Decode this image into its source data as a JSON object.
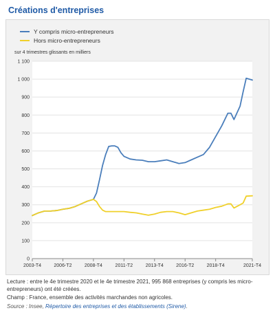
{
  "title": "Créations d'entreprises",
  "chart_data": {
    "type": "line",
    "ylabel": "sur 4 trimestres glissants en milliers",
    "ylim": [
      0,
      1100
    ],
    "yticks": [
      0,
      100,
      200,
      300,
      400,
      500,
      600,
      700,
      800,
      900,
      1000,
      1100
    ],
    "ytick_labels": [
      "0",
      "100",
      "200",
      "300",
      "400",
      "500",
      "600",
      "700",
      "800",
      "900",
      "1 000",
      "1 100"
    ],
    "xtick_labels": [
      "2003-T4",
      "2006-T2",
      "2008-T4",
      "2011-T2",
      "2013-T4",
      "2016-T2",
      "2018-T4",
      "2021-T4"
    ],
    "grid": true,
    "legend_position": "top-left",
    "series": [
      {
        "name": "Y compris micro-entrepreneurs",
        "color": "#4a7ebb",
        "points": [
          [
            "2003-T4",
            240
          ],
          [
            "2004-T2",
            255
          ],
          [
            "2004-T4",
            265
          ],
          [
            "2005-T2",
            265
          ],
          [
            "2005-T4",
            268
          ],
          [
            "2006-T2",
            275
          ],
          [
            "2006-T4",
            280
          ],
          [
            "2007-T2",
            290
          ],
          [
            "2007-T4",
            305
          ],
          [
            "2008-T2",
            320
          ],
          [
            "2008-T4",
            330
          ],
          [
            "2009-T1",
            365
          ],
          [
            "2009-T2",
            440
          ],
          [
            "2009-T3",
            520
          ],
          [
            "2009-T4",
            580
          ],
          [
            "2010-T1",
            625
          ],
          [
            "2010-T2",
            628
          ],
          [
            "2010-T3",
            628
          ],
          [
            "2010-T4",
            620
          ],
          [
            "2011-T1",
            590
          ],
          [
            "2011-T2",
            570
          ],
          [
            "2011-T4",
            555
          ],
          [
            "2012-T2",
            550
          ],
          [
            "2012-T4",
            548
          ],
          [
            "2013-T2",
            540
          ],
          [
            "2013-T4",
            540
          ],
          [
            "2014-T2",
            545
          ],
          [
            "2014-T4",
            550
          ],
          [
            "2015-T2",
            540
          ],
          [
            "2015-T4",
            530
          ],
          [
            "2016-T2",
            535
          ],
          [
            "2016-T4",
            550
          ],
          [
            "2017-T2",
            565
          ],
          [
            "2017-T4",
            580
          ],
          [
            "2018-T2",
            620
          ],
          [
            "2018-T4",
            680
          ],
          [
            "2019-T2",
            740
          ],
          [
            "2019-T4",
            810
          ],
          [
            "2020-T1",
            810
          ],
          [
            "2020-T2",
            775
          ],
          [
            "2020-T4",
            850
          ],
          [
            "2021-T1",
            930
          ],
          [
            "2021-T2",
            1005
          ],
          [
            "2021-T4",
            995
          ]
        ]
      },
      {
        "name": "Hors micro-entrepreneurs",
        "color": "#f0d02a",
        "points": [
          [
            "2003-T4",
            240
          ],
          [
            "2004-T2",
            255
          ],
          [
            "2004-T4",
            265
          ],
          [
            "2005-T2",
            265
          ],
          [
            "2005-T4",
            268
          ],
          [
            "2006-T2",
            275
          ],
          [
            "2006-T4",
            280
          ],
          [
            "2007-T2",
            290
          ],
          [
            "2007-T4",
            305
          ],
          [
            "2008-T2",
            320
          ],
          [
            "2008-T4",
            330
          ],
          [
            "2009-T1",
            318
          ],
          [
            "2009-T2",
            290
          ],
          [
            "2009-T3",
            270
          ],
          [
            "2009-T4",
            262
          ],
          [
            "2010-T2",
            262
          ],
          [
            "2010-T4",
            262
          ],
          [
            "2011-T2",
            262
          ],
          [
            "2011-T4",
            258
          ],
          [
            "2012-T2",
            255
          ],
          [
            "2012-T4",
            248
          ],
          [
            "2013-T2",
            242
          ],
          [
            "2013-T4",
            248
          ],
          [
            "2014-T2",
            258
          ],
          [
            "2014-T4",
            262
          ],
          [
            "2015-T2",
            262
          ],
          [
            "2015-T4",
            255
          ],
          [
            "2016-T2",
            245
          ],
          [
            "2016-T4",
            255
          ],
          [
            "2017-T2",
            265
          ],
          [
            "2017-T4",
            270
          ],
          [
            "2018-T2",
            275
          ],
          [
            "2018-T4",
            285
          ],
          [
            "2019-T2",
            292
          ],
          [
            "2019-T4",
            305
          ],
          [
            "2020-T1",
            305
          ],
          [
            "2020-T2",
            282
          ],
          [
            "2020-T4",
            300
          ],
          [
            "2021-T1",
            310
          ],
          [
            "2021-T2",
            348
          ],
          [
            "2021-T4",
            350
          ]
        ]
      }
    ]
  },
  "notes": {
    "lecture": "Lecture : entre le 4e trimestre 2020 et le 4e trimestre 2021, 995 868 entreprises (y compris les micro-entrepreneurs) ont été créées.",
    "champ": "Champ : France, ensemble des activités marchandes non agricoles.",
    "source_prefix": "Source : Insee, ",
    "source_link": "Répertoire des entreprises et des établissements (Sirene)",
    "source_suffix": "."
  }
}
